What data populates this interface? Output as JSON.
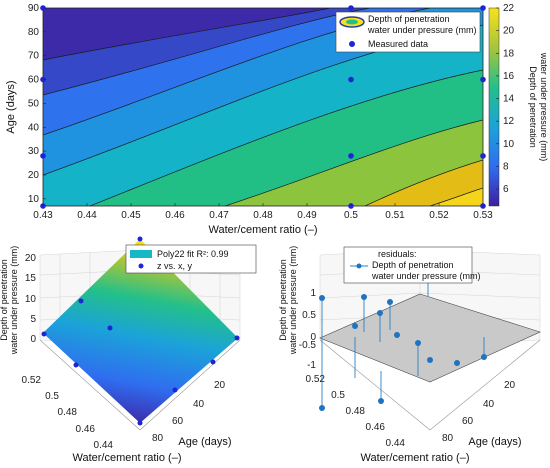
{
  "chart_data": [
    {
      "type": "contour",
      "xlabel": "Water/cement ratio (–)",
      "ylabel": "Age (days)",
      "xlim": [
        0.43,
        0.53
      ],
      "ylim": [
        7,
        90
      ],
      "xticks": [
        "0.43",
        "0.44",
        "0.45",
        "0.46",
        "0.47",
        "0.48",
        "0.49",
        "0.5",
        "0.51",
        "0.52",
        "0.53"
      ],
      "yticks": [
        "10",
        "20",
        "30",
        "40",
        "50",
        "60",
        "70",
        "80",
        "90"
      ],
      "colorbar_label": [
        "Depth of penetration",
        "water under pressure (mm)"
      ],
      "colorbar_ticks": [
        "6",
        "8",
        "10",
        "12",
        "14",
        "16",
        "18",
        "20",
        "22"
      ],
      "colorbar_range": [
        4.5,
        22
      ],
      "levels": [
        6,
        8,
        10,
        12,
        14,
        16,
        18,
        20
      ],
      "legend": [
        "Depth of penetration",
        "water under pressure (mm)",
        "Measured data"
      ],
      "measured_points": [
        {
          "x": 0.43,
          "y": 7
        },
        {
          "x": 0.43,
          "y": 28
        },
        {
          "x": 0.43,
          "y": 60
        },
        {
          "x": 0.43,
          "y": 90
        },
        {
          "x": 0.5,
          "y": 7
        },
        {
          "x": 0.5,
          "y": 28
        },
        {
          "x": 0.5,
          "y": 60
        },
        {
          "x": 0.5,
          "y": 90
        },
        {
          "x": 0.53,
          "y": 7
        },
        {
          "x": 0.53,
          "y": 28
        },
        {
          "x": 0.53,
          "y": 60
        },
        {
          "x": 0.53,
          "y": 90
        }
      ]
    },
    {
      "type": "surface3d",
      "zlabel": [
        "Depth of penetration",
        "water under pressure (mm)"
      ],
      "xlabel": "Water/cement ratio (–)",
      "ylabel": "Age (days)",
      "zticks": [
        "0",
        "5",
        "10",
        "15",
        "20"
      ],
      "xticks": [
        "0.44",
        "0.46",
        "0.48",
        "0.5",
        "0.52"
      ],
      "yticks": [
        "20",
        "40",
        "60",
        "80"
      ],
      "legend": [
        "Poly22 fit R²: 0.99",
        "z vs. x, y"
      ]
    },
    {
      "type": "residuals3d",
      "zlabel": [
        "Depth of penetration",
        "water under pressure (mm)"
      ],
      "xlabel": "Water/cement ratio (–)",
      "ylabel": "Age (days)",
      "zticks": [
        "-1",
        "-0.5",
        "0",
        "0.5",
        "1"
      ],
      "xticks": [
        "0.44",
        "0.46",
        "0.48",
        "0.5",
        "0.52"
      ],
      "yticks": [
        "20",
        "40",
        "60",
        "80"
      ],
      "legend": [
        "residuals:",
        "Depth of penetration",
        "water under pressure (mm)"
      ]
    }
  ]
}
